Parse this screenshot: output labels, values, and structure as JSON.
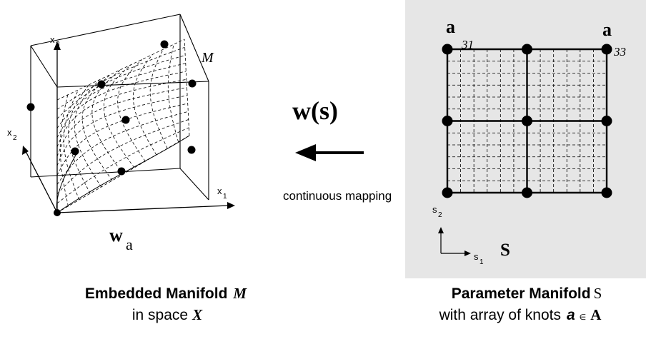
{
  "left_panel": {
    "axis_x1": "x",
    "axis_x1_sub": "1",
    "axis_x2": "x",
    "axis_x2_sub": "2",
    "axis_x3": "x",
    "axis_x3_sub": "3",
    "manifold_label": "M",
    "weight_label": "w",
    "weight_sub": "a",
    "caption_line1": "Embedded Manifold",
    "caption_line1_sym": "M",
    "caption_line2": "in space",
    "caption_line2_sym": "X"
  },
  "center": {
    "mapping_label": "w(s)",
    "arrow_caption": "continuous mapping"
  },
  "right_panel": {
    "background_color": "#e6e6e6",
    "knot_a31_letter": "a",
    "knot_a31_index": "31",
    "knot_a33_letter": "a",
    "knot_a33_index": "33",
    "axis_s1": "s",
    "axis_s1_sub": "1",
    "axis_s2": "s",
    "axis_s2_sub": "2",
    "space_label": "S",
    "caption_line1": "Parameter Manifold",
    "caption_line1_sym": "S",
    "caption_line2": "with array of knots",
    "caption_line2_a": "a",
    "caption_line2_in": "∈",
    "caption_line2_set": "A"
  }
}
